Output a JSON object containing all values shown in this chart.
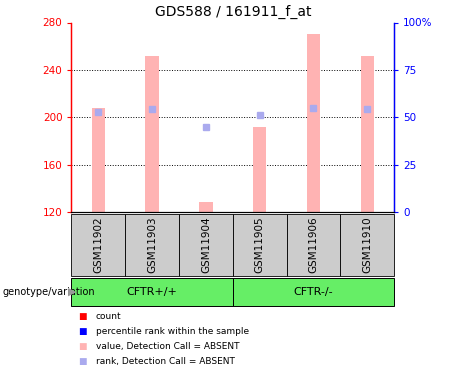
{
  "title": "GDS588 / 161911_f_at",
  "samples": [
    "GSM11902",
    "GSM11903",
    "GSM11904",
    "GSM11905",
    "GSM11906",
    "GSM11910"
  ],
  "bar_values": [
    208,
    252,
    128,
    192,
    270,
    252
  ],
  "rank_values": [
    204,
    207,
    192,
    202,
    208,
    207
  ],
  "ylim_left": [
    120,
    280
  ],
  "ylim_right": [
    0,
    100
  ],
  "yticks_left": [
    120,
    160,
    200,
    240,
    280
  ],
  "yticks_right": [
    0,
    25,
    50,
    75,
    100
  ],
  "ytick_labels_right": [
    "0",
    "25",
    "50",
    "75",
    "100%"
  ],
  "bar_color": "#ffb3b3",
  "rank_color": "#aaaaee",
  "grid_yticks": [
    160,
    200,
    240
  ],
  "title_fontsize": 10,
  "tick_fontsize": 7.5,
  "label_fontsize": 8,
  "legend_fontsize": 7,
  "left_axis_color": "red",
  "right_axis_color": "blue",
  "bar_width": 0.25,
  "group1_label": "CFTR+/+",
  "group2_label": "CFTR-/-",
  "green_color": "#66ee66",
  "gray_color": "#cccccc",
  "genotype_label": "genotype/variation",
  "legend_items": [
    {
      "color": "red",
      "label": "count"
    },
    {
      "color": "blue",
      "label": "percentile rank within the sample"
    },
    {
      "color": "#ffb3b3",
      "label": "value, Detection Call = ABSENT"
    },
    {
      "color": "#aaaaee",
      "label": "rank, Detection Call = ABSENT"
    }
  ]
}
